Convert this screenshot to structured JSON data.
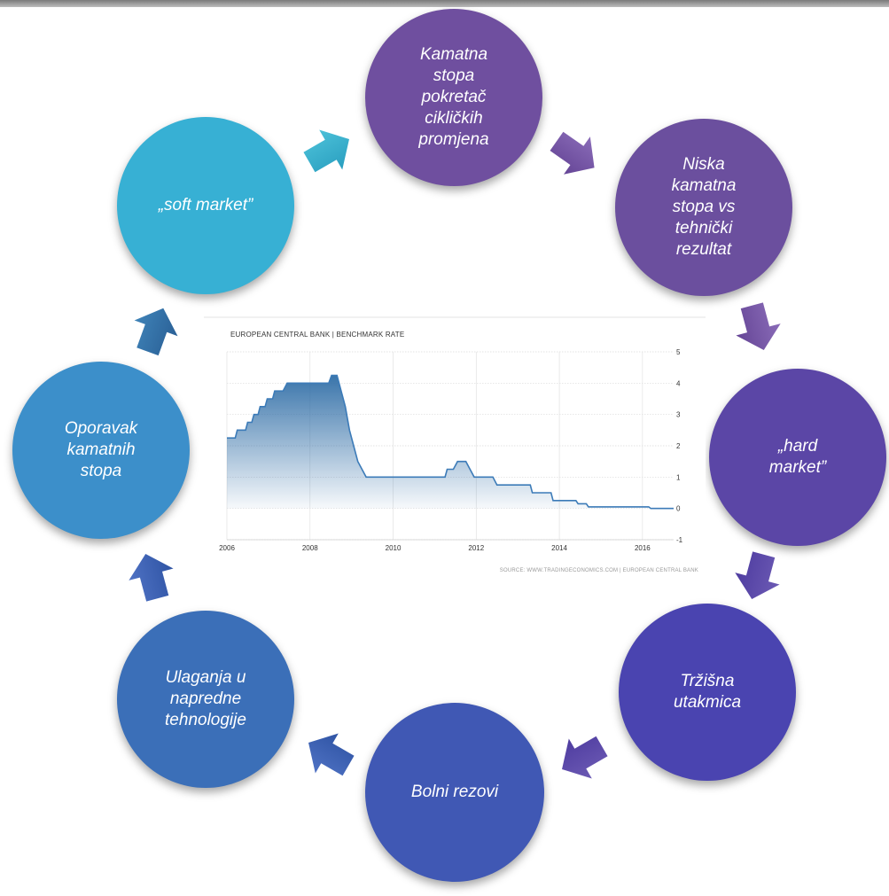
{
  "cycle": {
    "nodes": [
      {
        "id": "kamatna",
        "label": "Kamatna\nstopa\npokretač\ncikličkih\npromjena",
        "color": "#6f4f9f"
      },
      {
        "id": "niska",
        "label": "Niska\nkamatna\nstopa vs\ntehnički\nrezultat",
        "color": "#6b4f9e"
      },
      {
        "id": "hard",
        "label": "„hard\nmarket”",
        "color": "#5b46a6"
      },
      {
        "id": "trzisna",
        "label": "Tržišna\nutakmica",
        "color": "#4a44b0"
      },
      {
        "id": "bolni",
        "label": "Bolni rezovi",
        "color": "#4058b4"
      },
      {
        "id": "ulaganja",
        "label": "Ulaganja u\nnapredne\ntehnologije",
        "color": "#3b6fb8"
      },
      {
        "id": "oporavak",
        "label": "Oporavak\nkamatnih\nstopa",
        "color": "#3c8fca"
      },
      {
        "id": "soft",
        "label": "„soft market”",
        "color": "#37b0d4"
      }
    ]
  },
  "chart_data": {
    "type": "area",
    "title": "EUROPEAN CENTRAL BANK | BENCHMARK RATE",
    "source": "SOURCE: WWW.TRADINGECONOMICS.COM | EUROPEAN CENTRAL BANK",
    "x_ticks": [
      "2006",
      "2008",
      "2010",
      "2012",
      "2014",
      "2016"
    ],
    "y_ticks": [
      "5",
      "4",
      "3",
      "2",
      "1",
      "0",
      "-1"
    ],
    "xlim": [
      2006,
      2016.75
    ],
    "ylim": [
      -1,
      5
    ],
    "series": [
      {
        "x": [
          2006.0,
          2006.2,
          2006.25,
          2006.45,
          2006.5,
          2006.6,
          2006.65,
          2006.75,
          2006.8,
          2006.92,
          2006.97,
          2007.1,
          2007.15,
          2007.35,
          2007.45,
          2008.45,
          2008.52,
          2008.65,
          2008.75,
          2008.85,
          2008.95,
          2009.05,
          2009.15,
          2009.35,
          2011.25,
          2011.3,
          2011.45,
          2011.55,
          2011.75,
          2011.85,
          2011.95,
          2012.4,
          2012.5,
          2013.3,
          2013.35,
          2013.8,
          2013.85,
          2014.4,
          2014.45,
          2014.65,
          2014.7,
          2016.15,
          2016.2,
          2016.75
        ],
        "y": [
          2.25,
          2.25,
          2.5,
          2.5,
          2.75,
          2.75,
          3.0,
          3.0,
          3.25,
          3.25,
          3.5,
          3.5,
          3.75,
          3.75,
          4.0,
          4.0,
          4.25,
          4.25,
          3.75,
          3.25,
          2.5,
          2.0,
          1.5,
          1.0,
          1.0,
          1.25,
          1.25,
          1.5,
          1.5,
          1.25,
          1.0,
          1.0,
          0.75,
          0.75,
          0.5,
          0.5,
          0.25,
          0.25,
          0.15,
          0.15,
          0.05,
          0.05,
          0.0,
          0.0
        ]
      }
    ],
    "grid": true
  }
}
